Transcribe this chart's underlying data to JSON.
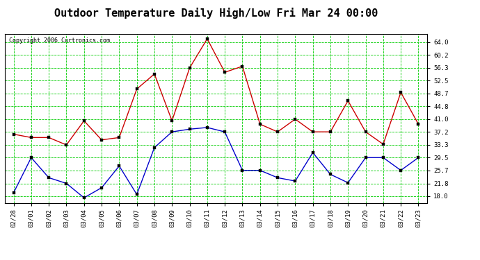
{
  "title": "Outdoor Temperature Daily High/Low Fri Mar 24 00:00",
  "copyright": "Copyright 2006 Curtronics.com",
  "x_labels": [
    "02/28",
    "03/01",
    "03/02",
    "03/03",
    "03/04",
    "03/05",
    "03/06",
    "03/07",
    "03/08",
    "03/09",
    "03/10",
    "03/11",
    "03/12",
    "03/13",
    "03/14",
    "03/15",
    "03/16",
    "03/17",
    "03/18",
    "03/19",
    "03/20",
    "03/21",
    "03/22",
    "03/23"
  ],
  "high_values": [
    36.5,
    35.5,
    35.5,
    33.3,
    40.5,
    34.8,
    35.5,
    50.0,
    54.5,
    40.5,
    56.3,
    65.0,
    55.0,
    56.8,
    39.5,
    37.2,
    41.0,
    37.2,
    37.2,
    46.5,
    37.2,
    33.5,
    49.0,
    39.5
  ],
  "low_values": [
    19.0,
    29.5,
    23.5,
    21.8,
    17.5,
    20.5,
    27.0,
    18.5,
    32.5,
    37.2,
    38.0,
    38.5,
    37.2,
    25.7,
    25.7,
    23.5,
    22.5,
    31.0,
    24.5,
    22.0,
    29.5,
    29.5,
    25.7,
    29.5
  ],
  "high_color": "#cc0000",
  "low_color": "#0000cc",
  "bg_color": "#ffffff",
  "grid_color": "#00cc00",
  "title_fontsize": 11,
  "copyright_fontsize": 6,
  "tick_fontsize": 6.5,
  "yticks": [
    18.0,
    21.8,
    25.7,
    29.5,
    33.3,
    37.2,
    41.0,
    44.8,
    48.7,
    52.5,
    56.3,
    60.2,
    64.0
  ],
  "ylim": [
    16.0,
    66.5
  ]
}
